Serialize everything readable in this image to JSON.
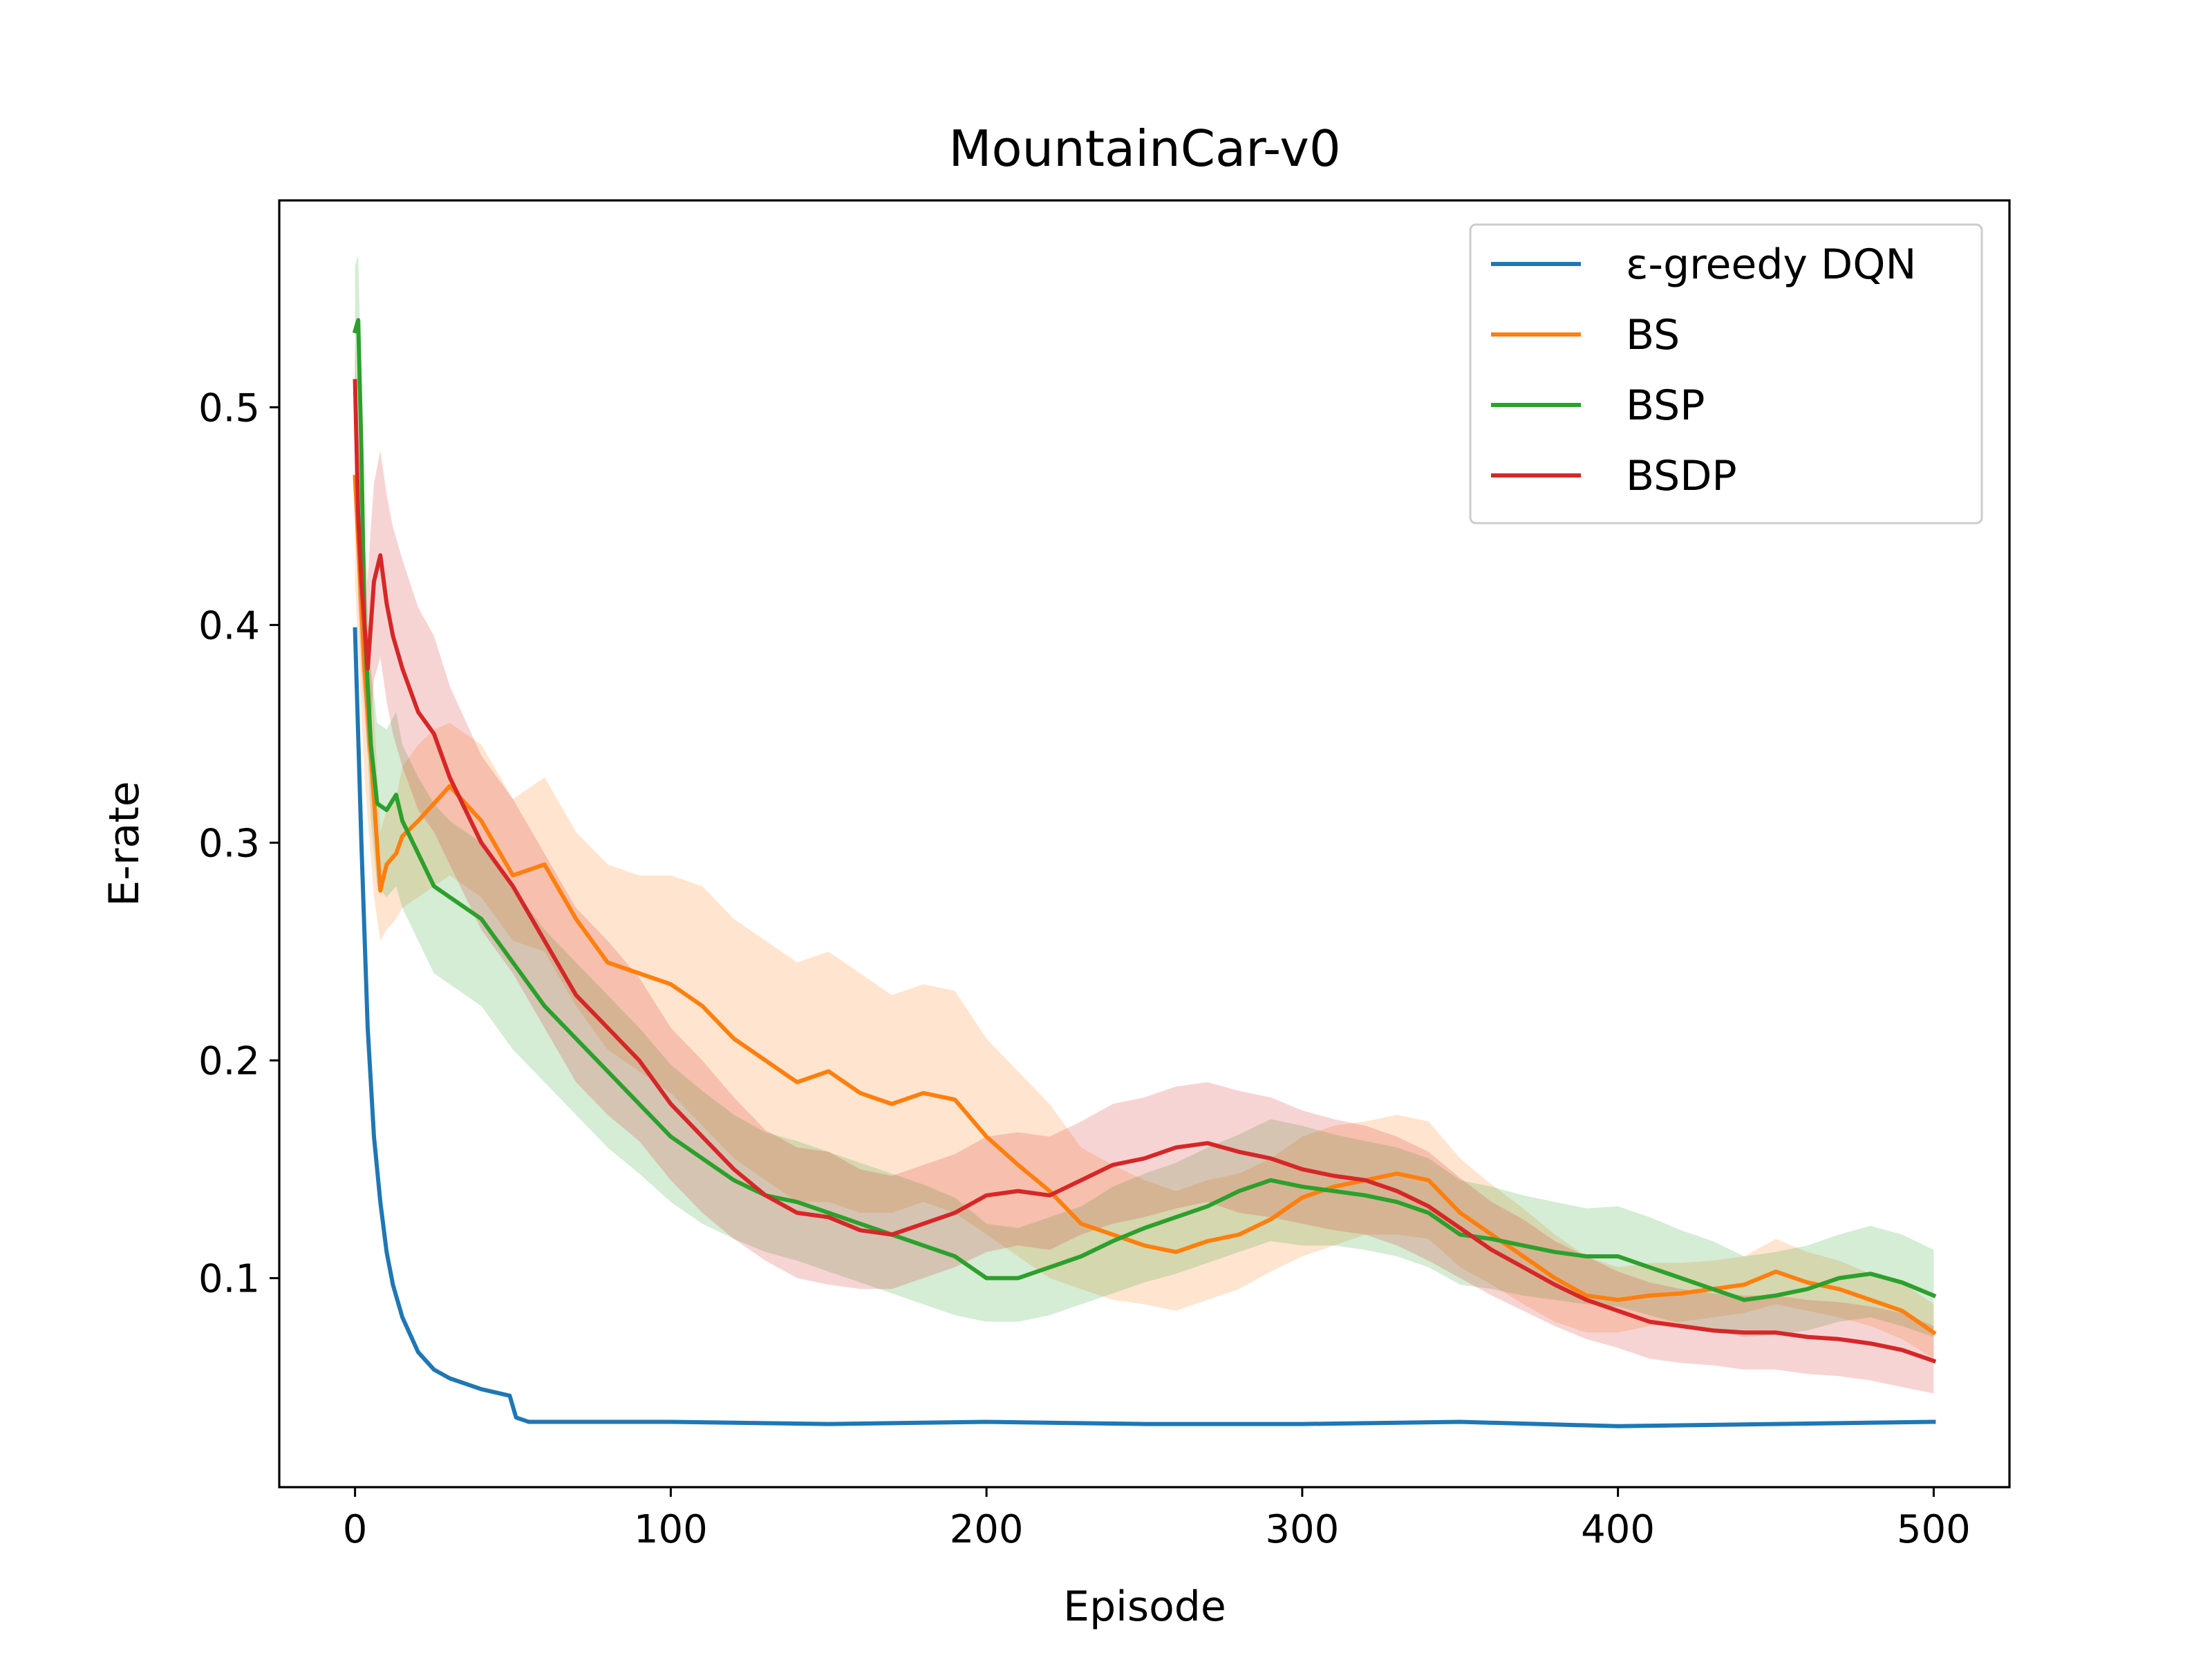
{
  "chart_data": {
    "type": "line",
    "title": "MountainCar-v0",
    "xlabel": "Episode",
    "ylabel": "E-rate",
    "xlim": [
      -24,
      524
    ],
    "ylim": [
      0.004,
      0.595
    ],
    "xticks": [
      0,
      100,
      200,
      300,
      400,
      500
    ],
    "xtick_labels": [
      "0",
      "100",
      "200",
      "300",
      "400",
      "500"
    ],
    "yticks": [
      0.1,
      0.2,
      0.3,
      0.4,
      0.5
    ],
    "ytick_labels": [
      "0.1",
      "0.2",
      "0.3",
      "0.4",
      "0.5"
    ],
    "grid": false,
    "legend": {
      "position": "top-right"
    },
    "series": [
      {
        "name": "ε-greedy DQN",
        "color": "#1f77b4",
        "x": [
          0,
          2,
          4,
          6,
          8,
          10,
          12,
          15,
          20,
          25,
          30,
          40,
          49,
          51,
          55,
          60,
          100,
          150,
          200,
          250,
          300,
          350,
          400,
          450,
          500
        ],
        "y": [
          0.398,
          0.3,
          0.215,
          0.165,
          0.135,
          0.112,
          0.097,
          0.082,
          0.066,
          0.058,
          0.054,
          0.049,
          0.046,
          0.036,
          0.034,
          0.034,
          0.034,
          0.033,
          0.034,
          0.033,
          0.033,
          0.034,
          0.032,
          0.033,
          0.034
        ],
        "lower": null,
        "upper": null
      },
      {
        "name": "BS",
        "color": "#ff7f0e",
        "x": [
          0,
          3,
          6,
          8,
          10,
          13,
          15,
          20,
          25,
          30,
          40,
          50,
          60,
          70,
          80,
          90,
          100,
          110,
          120,
          130,
          140,
          150,
          160,
          170,
          180,
          190,
          200,
          210,
          220,
          230,
          240,
          250,
          260,
          270,
          280,
          290,
          300,
          310,
          320,
          330,
          340,
          350,
          360,
          370,
          380,
          390,
          400,
          410,
          420,
          430,
          440,
          450,
          460,
          470,
          480,
          490,
          500
        ],
        "y": [
          0.468,
          0.38,
          0.32,
          0.278,
          0.29,
          0.295,
          0.303,
          0.31,
          0.318,
          0.326,
          0.31,
          0.285,
          0.29,
          0.265,
          0.245,
          0.24,
          0.235,
          0.225,
          0.21,
          0.2,
          0.19,
          0.195,
          0.185,
          0.18,
          0.185,
          0.182,
          0.165,
          0.152,
          0.14,
          0.125,
          0.12,
          0.115,
          0.112,
          0.117,
          0.12,
          0.127,
          0.137,
          0.142,
          0.145,
          0.148,
          0.145,
          0.13,
          0.12,
          0.11,
          0.1,
          0.092,
          0.09,
          0.092,
          0.093,
          0.095,
          0.097,
          0.103,
          0.098,
          0.095,
          0.09,
          0.085,
          0.075
        ],
        "lower": [
          0.42,
          0.33,
          0.275,
          0.255,
          0.26,
          0.265,
          0.27,
          0.275,
          0.28,
          0.285,
          0.275,
          0.255,
          0.25,
          0.225,
          0.205,
          0.195,
          0.185,
          0.17,
          0.155,
          0.145,
          0.135,
          0.135,
          0.13,
          0.13,
          0.135,
          0.13,
          0.12,
          0.11,
          0.1,
          0.095,
          0.09,
          0.088,
          0.085,
          0.09,
          0.095,
          0.103,
          0.11,
          0.115,
          0.12,
          0.12,
          0.118,
          0.105,
          0.097,
          0.088,
          0.08,
          0.075,
          0.075,
          0.078,
          0.08,
          0.082,
          0.084,
          0.088,
          0.085,
          0.082,
          0.078,
          0.072,
          0.063
        ],
        "upper": [
          0.5,
          0.41,
          0.36,
          0.305,
          0.315,
          0.32,
          0.335,
          0.345,
          0.352,
          0.355,
          0.345,
          0.32,
          0.33,
          0.305,
          0.29,
          0.285,
          0.285,
          0.28,
          0.265,
          0.255,
          0.245,
          0.25,
          0.24,
          0.23,
          0.235,
          0.232,
          0.21,
          0.195,
          0.18,
          0.16,
          0.152,
          0.145,
          0.14,
          0.145,
          0.148,
          0.155,
          0.165,
          0.17,
          0.172,
          0.175,
          0.172,
          0.155,
          0.143,
          0.132,
          0.12,
          0.11,
          0.105,
          0.107,
          0.107,
          0.108,
          0.11,
          0.118,
          0.112,
          0.108,
          0.102,
          0.098,
          0.088
        ]
      },
      {
        "name": "BSP",
        "color": "#2ca02c",
        "x": [
          0,
          1,
          2,
          3,
          5,
          7,
          10,
          13,
          15,
          20,
          25,
          30,
          40,
          50,
          60,
          70,
          80,
          90,
          100,
          110,
          120,
          130,
          140,
          150,
          160,
          170,
          180,
          190,
          200,
          210,
          220,
          230,
          240,
          250,
          260,
          270,
          280,
          290,
          300,
          310,
          320,
          330,
          340,
          350,
          360,
          370,
          380,
          390,
          400,
          410,
          420,
          430,
          440,
          450,
          460,
          470,
          480,
          490,
          500
        ],
        "y": [
          0.535,
          0.54,
          0.48,
          0.4,
          0.345,
          0.318,
          0.315,
          0.322,
          0.31,
          0.295,
          0.28,
          0.275,
          0.265,
          0.245,
          0.225,
          0.21,
          0.195,
          0.18,
          0.165,
          0.155,
          0.145,
          0.138,
          0.135,
          0.13,
          0.125,
          0.12,
          0.115,
          0.11,
          0.1,
          0.1,
          0.105,
          0.11,
          0.117,
          0.123,
          0.128,
          0.133,
          0.14,
          0.145,
          0.142,
          0.14,
          0.138,
          0.135,
          0.13,
          0.12,
          0.118,
          0.115,
          0.112,
          0.11,
          0.11,
          0.105,
          0.1,
          0.095,
          0.09,
          0.092,
          0.095,
          0.1,
          0.102,
          0.098,
          0.092
        ],
        "lower": [
          0.5,
          0.51,
          0.45,
          0.37,
          0.31,
          0.28,
          0.275,
          0.28,
          0.27,
          0.255,
          0.24,
          0.235,
          0.225,
          0.205,
          0.19,
          0.175,
          0.16,
          0.148,
          0.135,
          0.125,
          0.118,
          0.112,
          0.108,
          0.103,
          0.098,
          0.093,
          0.088,
          0.083,
          0.08,
          0.08,
          0.083,
          0.088,
          0.093,
          0.098,
          0.102,
          0.107,
          0.112,
          0.117,
          0.115,
          0.115,
          0.113,
          0.11,
          0.105,
          0.097,
          0.095,
          0.092,
          0.09,
          0.088,
          0.087,
          0.083,
          0.079,
          0.076,
          0.073,
          0.074,
          0.076,
          0.08,
          0.082,
          0.078,
          0.073
        ],
        "upper": [
          0.565,
          0.57,
          0.51,
          0.43,
          0.38,
          0.355,
          0.352,
          0.36,
          0.345,
          0.33,
          0.318,
          0.31,
          0.3,
          0.28,
          0.26,
          0.245,
          0.23,
          0.215,
          0.198,
          0.186,
          0.175,
          0.167,
          0.163,
          0.158,
          0.153,
          0.148,
          0.143,
          0.137,
          0.125,
          0.123,
          0.128,
          0.133,
          0.142,
          0.148,
          0.153,
          0.16,
          0.166,
          0.173,
          0.17,
          0.166,
          0.163,
          0.16,
          0.155,
          0.145,
          0.142,
          0.138,
          0.135,
          0.132,
          0.133,
          0.128,
          0.122,
          0.117,
          0.11,
          0.112,
          0.115,
          0.12,
          0.124,
          0.12,
          0.113
        ]
      },
      {
        "name": "BSDP",
        "color": "#d62728",
        "x": [
          0,
          1,
          2,
          4,
          5,
          6,
          8,
          10,
          12,
          15,
          20,
          25,
          30,
          40,
          50,
          60,
          70,
          80,
          90,
          100,
          110,
          120,
          130,
          140,
          150,
          160,
          170,
          180,
          190,
          200,
          210,
          220,
          230,
          240,
          250,
          260,
          270,
          280,
          290,
          300,
          310,
          320,
          330,
          340,
          350,
          360,
          370,
          380,
          390,
          400,
          410,
          420,
          430,
          440,
          450,
          460,
          470,
          480,
          490,
          500
        ],
        "y": [
          0.512,
          0.45,
          0.42,
          0.38,
          0.4,
          0.42,
          0.432,
          0.41,
          0.395,
          0.38,
          0.36,
          0.35,
          0.33,
          0.3,
          0.28,
          0.255,
          0.23,
          0.215,
          0.2,
          0.18,
          0.165,
          0.15,
          0.138,
          0.13,
          0.128,
          0.122,
          0.12,
          0.125,
          0.13,
          0.138,
          0.14,
          0.138,
          0.145,
          0.152,
          0.155,
          0.16,
          0.162,
          0.158,
          0.155,
          0.15,
          0.147,
          0.145,
          0.14,
          0.133,
          0.123,
          0.113,
          0.105,
          0.097,
          0.09,
          0.085,
          0.08,
          0.078,
          0.076,
          0.075,
          0.075,
          0.073,
          0.072,
          0.07,
          0.067,
          0.062
        ],
        "lower": [
          0.47,
          0.41,
          0.38,
          0.34,
          0.355,
          0.375,
          0.385,
          0.365,
          0.35,
          0.335,
          0.315,
          0.305,
          0.29,
          0.26,
          0.24,
          0.215,
          0.19,
          0.175,
          0.163,
          0.145,
          0.13,
          0.118,
          0.108,
          0.1,
          0.097,
          0.095,
          0.095,
          0.1,
          0.105,
          0.112,
          0.115,
          0.113,
          0.12,
          0.125,
          0.128,
          0.132,
          0.135,
          0.13,
          0.128,
          0.125,
          0.122,
          0.12,
          0.115,
          0.108,
          0.1,
          0.092,
          0.085,
          0.078,
          0.072,
          0.068,
          0.063,
          0.061,
          0.06,
          0.058,
          0.058,
          0.056,
          0.055,
          0.053,
          0.05,
          0.047
        ],
        "upper": [
          0.53,
          0.49,
          0.46,
          0.42,
          0.445,
          0.465,
          0.48,
          0.46,
          0.445,
          0.43,
          0.408,
          0.395,
          0.372,
          0.34,
          0.32,
          0.295,
          0.27,
          0.255,
          0.238,
          0.215,
          0.2,
          0.183,
          0.168,
          0.16,
          0.158,
          0.15,
          0.147,
          0.152,
          0.157,
          0.165,
          0.167,
          0.165,
          0.172,
          0.18,
          0.183,
          0.188,
          0.19,
          0.186,
          0.183,
          0.177,
          0.173,
          0.17,
          0.165,
          0.158,
          0.146,
          0.135,
          0.127,
          0.117,
          0.11,
          0.103,
          0.098,
          0.095,
          0.093,
          0.092,
          0.092,
          0.09,
          0.089,
          0.087,
          0.084,
          0.078
        ]
      }
    ]
  }
}
